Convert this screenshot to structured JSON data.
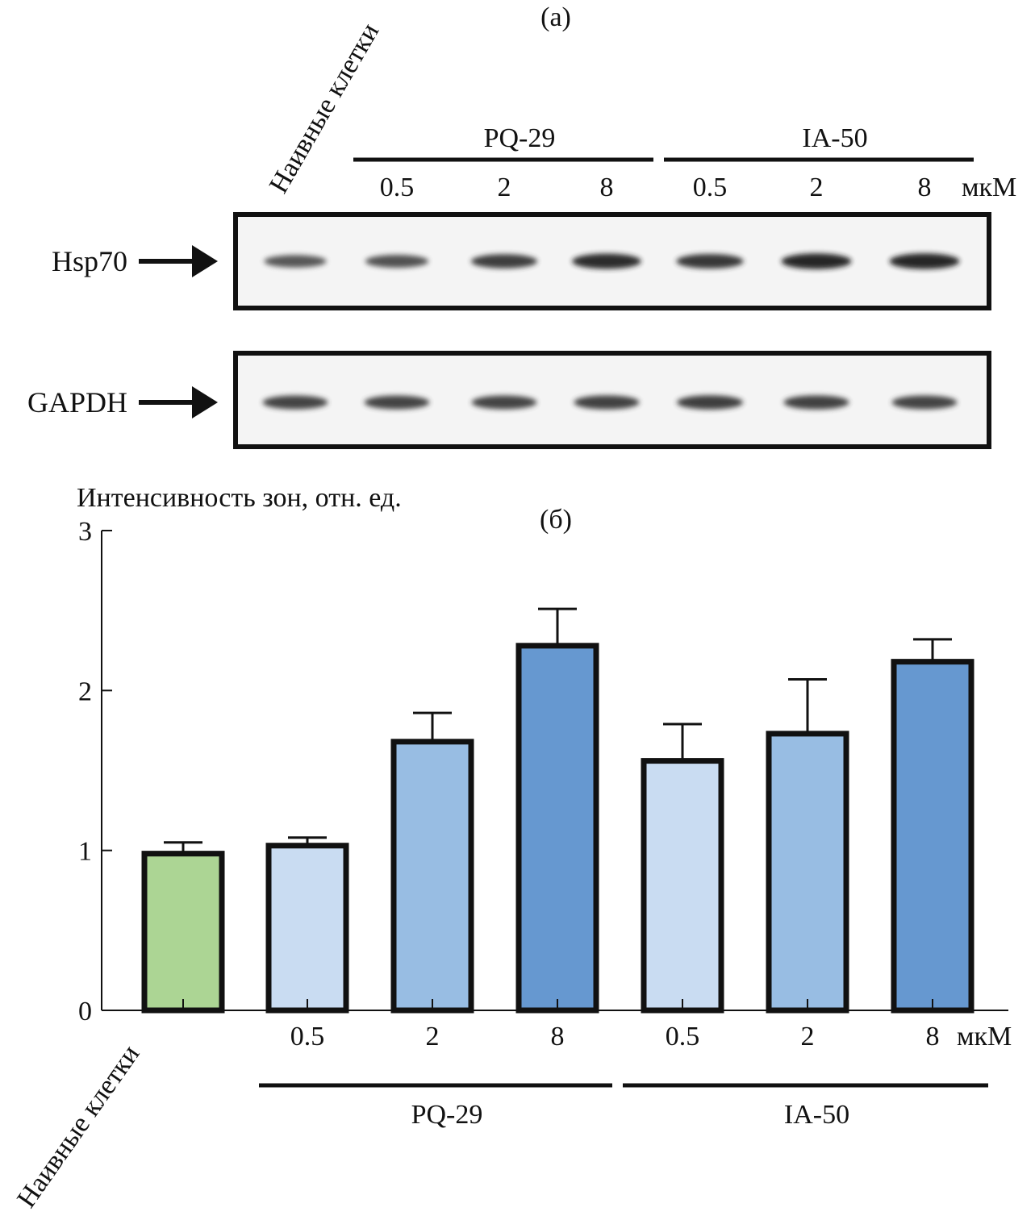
{
  "blot": {
    "panel_label": "(а)",
    "naive_label": "Наивные клетки",
    "groups": [
      {
        "name": "PQ-29",
        "doses": [
          "0.5",
          "2",
          "8"
        ]
      },
      {
        "name": "IA-50",
        "doses": [
          "0.5",
          "2",
          "8"
        ]
      }
    ],
    "unit": "мкМ",
    "rows": [
      {
        "label": "Hsp70",
        "bands": [
          0.55,
          0.6,
          0.75,
          0.9,
          0.8,
          0.95,
          0.95
        ]
      },
      {
        "label": "GAPDH",
        "bands": [
          0.7,
          0.7,
          0.7,
          0.72,
          0.75,
          0.72,
          0.7
        ]
      }
    ]
  },
  "chart_data": {
    "type": "bar",
    "panel_label": "(б)",
    "ylabel": "Интенсивность зон, отн. ед.",
    "ylim": [
      0,
      3
    ],
    "yticks": [
      "0",
      "1",
      "2",
      "3"
    ],
    "categories": [
      "Наивные клетки",
      "0.5",
      "2",
      "8",
      "0.5",
      "2",
      "8"
    ],
    "values": [
      0.98,
      1.03,
      1.68,
      2.28,
      1.56,
      1.73,
      2.18
    ],
    "errors": [
      0.07,
      0.05,
      0.18,
      0.23,
      0.23,
      0.34,
      0.14
    ],
    "bar_colors": [
      "#acd594",
      "#c9dcf2",
      "#98bde3",
      "#6698d0",
      "#c9dcf2",
      "#98bde3",
      "#6698d0"
    ],
    "unit": "мкМ",
    "groups": [
      {
        "name": "PQ-29",
        "from": 1,
        "to": 3
      },
      {
        "name": "IA-50",
        "from": 4,
        "to": 6
      }
    ],
    "grid": false,
    "legend": "none"
  }
}
